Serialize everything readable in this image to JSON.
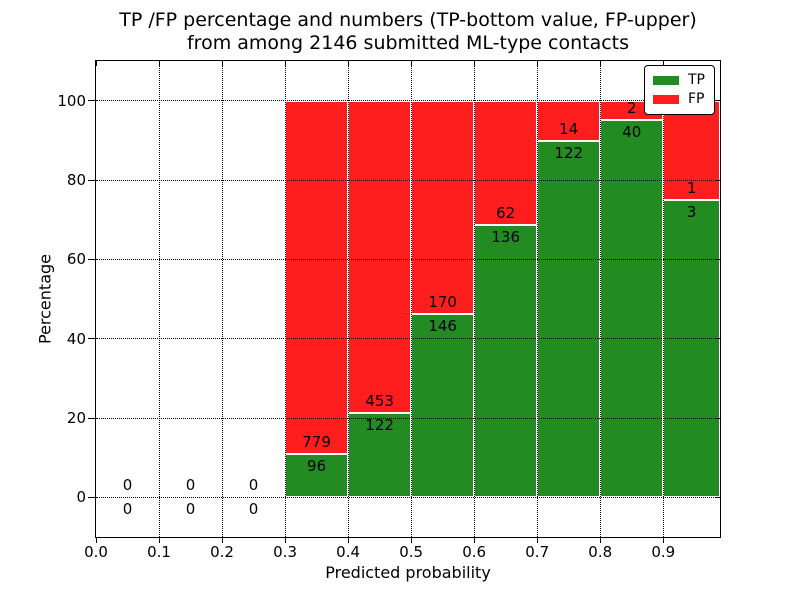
{
  "chart_data": {
    "type": "bar",
    "subtype": "stacked-percentage-histogram",
    "title": "TP /FP percentage and numbers (TP-bottom value, FP-upper)\nfrom among 2146 submitted ML-type contacts",
    "title_lines": [
      "TP /FP percentage and numbers (TP-bottom value, FP-upper)",
      "from among 2146 submitted ML-type contacts"
    ],
    "total_contacts": 2146,
    "xlabel": "Predicted probability",
    "ylabel": "Percentage",
    "xlim": [
      0.0,
      0.99
    ],
    "ylim": [
      -10,
      110
    ],
    "xticks": [
      0.0,
      0.1,
      0.2,
      0.3,
      0.4,
      0.5,
      0.6,
      0.7,
      0.8,
      0.9
    ],
    "xtick_labels": [
      "0.0",
      "0.1",
      "0.2",
      "0.3",
      "0.4",
      "0.5",
      "0.6",
      "0.7",
      "0.8",
      "0.9"
    ],
    "yticks": [
      0,
      20,
      40,
      60,
      80,
      100
    ],
    "ytick_labels": [
      "0",
      "20",
      "40",
      "60",
      "80",
      "100"
    ],
    "grid": true,
    "grid_style": "dotted",
    "colors": {
      "tp": "#228b22",
      "fp": "#fe1e1e",
      "bar_edge": "#ffffff",
      "grid": "#000000"
    },
    "series": [
      {
        "name": "TP",
        "color": "#228b22",
        "counts": [
          0,
          0,
          0,
          96,
          122,
          146,
          136,
          122,
          40,
          3
        ]
      },
      {
        "name": "FP",
        "color": "#fe1e1e",
        "counts": [
          0,
          0,
          0,
          779,
          453,
          170,
          62,
          14,
          2,
          1
        ]
      }
    ],
    "bins": [
      {
        "x0": 0.0,
        "x1": 0.1,
        "tp": 0,
        "fp": 0,
        "tp_pct": 0
      },
      {
        "x0": 0.1,
        "x1": 0.2,
        "tp": 0,
        "fp": 0,
        "tp_pct": 0
      },
      {
        "x0": 0.2,
        "x1": 0.3,
        "tp": 0,
        "fp": 0,
        "tp_pct": 0
      },
      {
        "x0": 0.3,
        "x1": 0.4,
        "tp": 96,
        "fp": 779,
        "tp_pct": 10.97
      },
      {
        "x0": 0.4,
        "x1": 0.5,
        "tp": 122,
        "fp": 453,
        "tp_pct": 21.22
      },
      {
        "x0": 0.5,
        "x1": 0.6,
        "tp": 146,
        "fp": 170,
        "tp_pct": 46.2
      },
      {
        "x0": 0.6,
        "x1": 0.7,
        "tp": 136,
        "fp": 62,
        "tp_pct": 68.69
      },
      {
        "x0": 0.7,
        "x1": 0.8,
        "tp": 122,
        "fp": 14,
        "tp_pct": 89.71
      },
      {
        "x0": 0.8,
        "x1": 0.9,
        "tp": 40,
        "fp": 2,
        "tp_pct": 95.24
      },
      {
        "x0": 0.9,
        "x1": 0.99,
        "tp": 3,
        "fp": 1,
        "tp_pct": 75.0
      }
    ],
    "legend": {
      "position": "upper right",
      "items": [
        {
          "label": "TP",
          "color": "#228b22"
        },
        {
          "label": "FP",
          "color": "#fe1e1e"
        }
      ]
    }
  }
}
